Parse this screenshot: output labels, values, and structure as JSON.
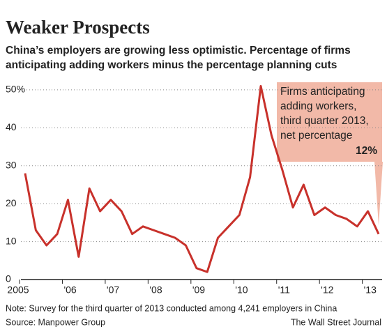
{
  "chart_data": {
    "type": "line",
    "title": "Weaker Prospects",
    "subtitle": [
      "China’s employers are growing less optimistic. Percentage of firms",
      "anticipating adding workers minus the percentage planning cuts"
    ],
    "categories": [
      "2005",
      null,
      null,
      null,
      "'06",
      null,
      null,
      null,
      "'07",
      null,
      null,
      null,
      "'08",
      null,
      null,
      null,
      "'09",
      null,
      null,
      null,
      "'10",
      null,
      null,
      null,
      "'11",
      null,
      null,
      null,
      "'12",
      null,
      null,
      null,
      "'13",
      null
    ],
    "series": [
      {
        "name": "Net percentage",
        "color": "#c8312b",
        "values": [
          28,
          13,
          9,
          12,
          21,
          6,
          24,
          18,
          21,
          18,
          12,
          14,
          13,
          12,
          11,
          9,
          3,
          2,
          11,
          14,
          17,
          27,
          51,
          38,
          29,
          19,
          25,
          17,
          19,
          17,
          16,
          14,
          18,
          12
        ]
      }
    ],
    "ylim": [
      0,
      52
    ],
    "yticks": [
      0,
      10,
      20,
      30,
      40,
      {
        "value": 50,
        "label": "50%"
      }
    ],
    "grid": true,
    "annotation": [
      "Firms anticipating",
      "adding workers,",
      "third quarter 2013,",
      "net percentage"
    ],
    "annotation_value": "12%",
    "note": "Note: Survey for the third quarter of 2013 conducted among 4,241 employers in China",
    "source": "Source: Manpower Group",
    "credit": "The Wall Street Journal"
  }
}
